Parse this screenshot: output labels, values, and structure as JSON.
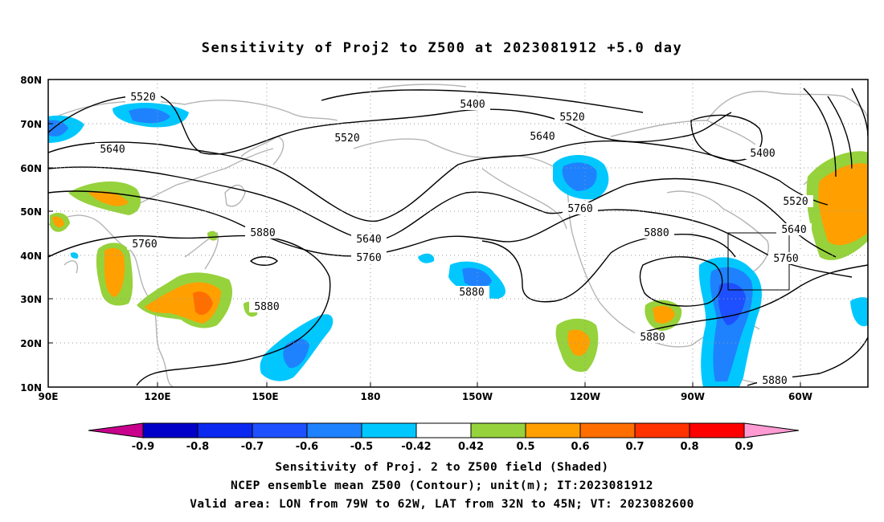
{
  "title": "Sensitivity of Proj2 to Z500 at 2023081912 +5.0 day",
  "lat_ticks": [
    "80N",
    "70N",
    "60N",
    "50N",
    "40N",
    "30N",
    "20N",
    "10N"
  ],
  "lon_ticks": [
    "90E",
    "120E",
    "150E",
    "180",
    "150W",
    "120W",
    "90W",
    "60W"
  ],
  "contour_labels": [
    "5520",
    "5400",
    "5520",
    "5640",
    "5520",
    "5400",
    "5640",
    "5520",
    "5640",
    "5760",
    "5640",
    "5760",
    "5880",
    "5760",
    "5880",
    "5880",
    "5880",
    "5760",
    "5880",
    "5880"
  ],
  "colorbar": {
    "labels": [
      "-0.9",
      "-0.8",
      "-0.7",
      "-0.6",
      "-0.5",
      "-0.42",
      "0.42",
      "0.5",
      "0.6",
      "0.7",
      "0.8",
      "0.9"
    ],
    "colors": [
      "#c8008c",
      "#0000c8",
      "#0a28f0",
      "#1e50ff",
      "#1e82ff",
      "#00c8ff",
      "#ffffff",
      "#96d23c",
      "#ffa000",
      "#ff6e00",
      "#ff3200",
      "#ff0000",
      "#ff9bd2"
    ]
  },
  "captions": [
    "Sensitivity of Proj. 2 to Z500 field (Shaded)",
    "NCEP ensemble mean Z500 (Contour); unit(m); IT:2023081912",
    "Valid area: LON from 79W to 62W, LAT from 32N to 45N; VT: 2023082600"
  ]
}
